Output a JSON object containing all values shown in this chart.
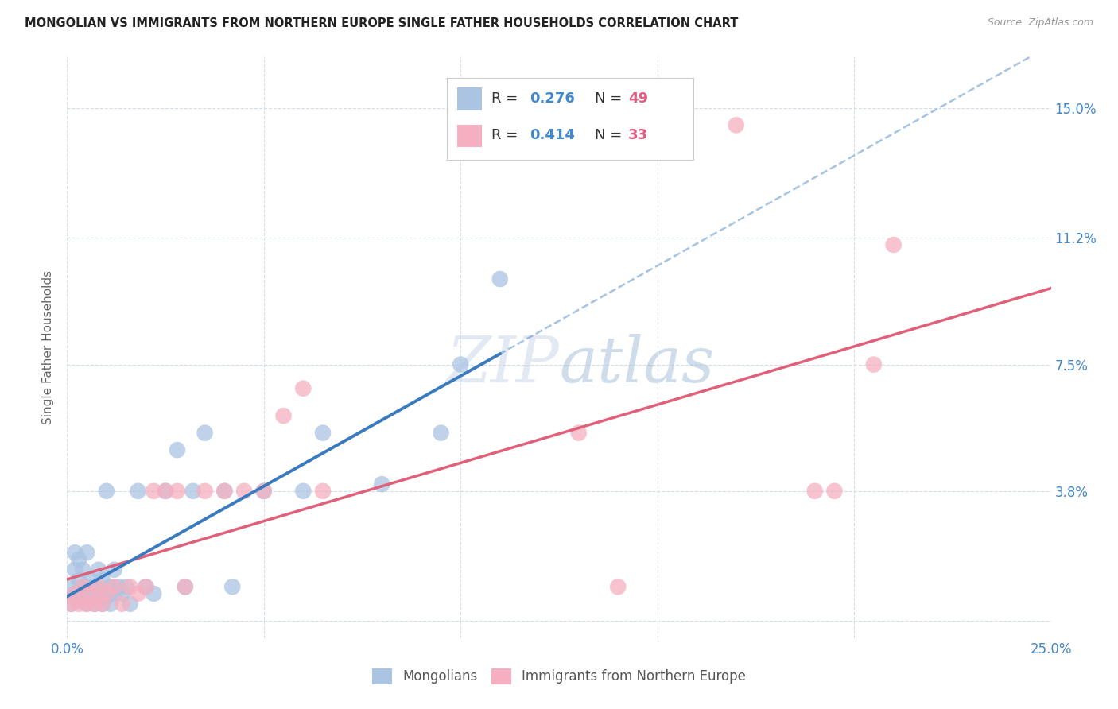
{
  "title": "MONGOLIAN VS IMMIGRANTS FROM NORTHERN EUROPE SINGLE FATHER HOUSEHOLDS CORRELATION CHART",
  "source": "Source: ZipAtlas.com",
  "ylabel": "Single Father Households",
  "watermark": "ZIPatlas",
  "xlim": [
    0.0,
    0.25
  ],
  "ylim": [
    -0.005,
    0.165
  ],
  "xticks": [
    0.0,
    0.05,
    0.1,
    0.15,
    0.2,
    0.25
  ],
  "xticklabels": [
    "0.0%",
    "",
    "",
    "",
    "",
    "25.0%"
  ],
  "ytick_positions": [
    0.0,
    0.038,
    0.075,
    0.112,
    0.15
  ],
  "yticklabels": [
    "",
    "3.8%",
    "7.5%",
    "11.2%",
    "15.0%"
  ],
  "r_mongolian": 0.276,
  "n_mongolian": 49,
  "r_northern_europe": 0.414,
  "n_northern_europe": 33,
  "color_mongolian": "#aac4e2",
  "color_northern_europe": "#f5afc0",
  "line_color_mongolian": "#3a7bbf",
  "line_color_northern_europe": "#e0607a",
  "scatter_mongolian_x": [
    0.001,
    0.001,
    0.002,
    0.002,
    0.002,
    0.003,
    0.003,
    0.003,
    0.004,
    0.004,
    0.004,
    0.005,
    0.005,
    0.005,
    0.006,
    0.006,
    0.007,
    0.007,
    0.008,
    0.008,
    0.009,
    0.009,
    0.01,
    0.01,
    0.011,
    0.011,
    0.012,
    0.012,
    0.013,
    0.014,
    0.015,
    0.016,
    0.018,
    0.02,
    0.022,
    0.025,
    0.028,
    0.03,
    0.032,
    0.035,
    0.04,
    0.042,
    0.05,
    0.06,
    0.065,
    0.08,
    0.095,
    0.1,
    0.11
  ],
  "scatter_mongolian_y": [
    0.005,
    0.01,
    0.008,
    0.015,
    0.02,
    0.006,
    0.012,
    0.018,
    0.007,
    0.01,
    0.015,
    0.005,
    0.01,
    0.02,
    0.008,
    0.012,
    0.005,
    0.01,
    0.008,
    0.015,
    0.005,
    0.012,
    0.007,
    0.038,
    0.005,
    0.01,
    0.008,
    0.015,
    0.01,
    0.008,
    0.01,
    0.005,
    0.038,
    0.01,
    0.008,
    0.038,
    0.05,
    0.01,
    0.038,
    0.055,
    0.038,
    0.01,
    0.038,
    0.038,
    0.055,
    0.04,
    0.055,
    0.075,
    0.1
  ],
  "scatter_northern_europe_x": [
    0.001,
    0.002,
    0.003,
    0.004,
    0.005,
    0.006,
    0.007,
    0.008,
    0.009,
    0.01,
    0.012,
    0.014,
    0.016,
    0.018,
    0.02,
    0.022,
    0.025,
    0.028,
    0.03,
    0.035,
    0.04,
    0.045,
    0.05,
    0.055,
    0.06,
    0.065,
    0.13,
    0.14,
    0.17,
    0.19,
    0.195,
    0.205,
    0.21
  ],
  "scatter_northern_europe_y": [
    0.005,
    0.008,
    0.005,
    0.01,
    0.005,
    0.008,
    0.005,
    0.01,
    0.005,
    0.008,
    0.01,
    0.005,
    0.01,
    0.008,
    0.01,
    0.038,
    0.038,
    0.038,
    0.01,
    0.038,
    0.038,
    0.038,
    0.038,
    0.06,
    0.068,
    0.038,
    0.055,
    0.01,
    0.145,
    0.038,
    0.038,
    0.075,
    0.11
  ],
  "legend_label_mongolian": "Mongolians",
  "legend_label_northern_europe": "Immigrants from Northern Europe",
  "background_color": "#ffffff",
  "grid_color": "#d5dde8"
}
